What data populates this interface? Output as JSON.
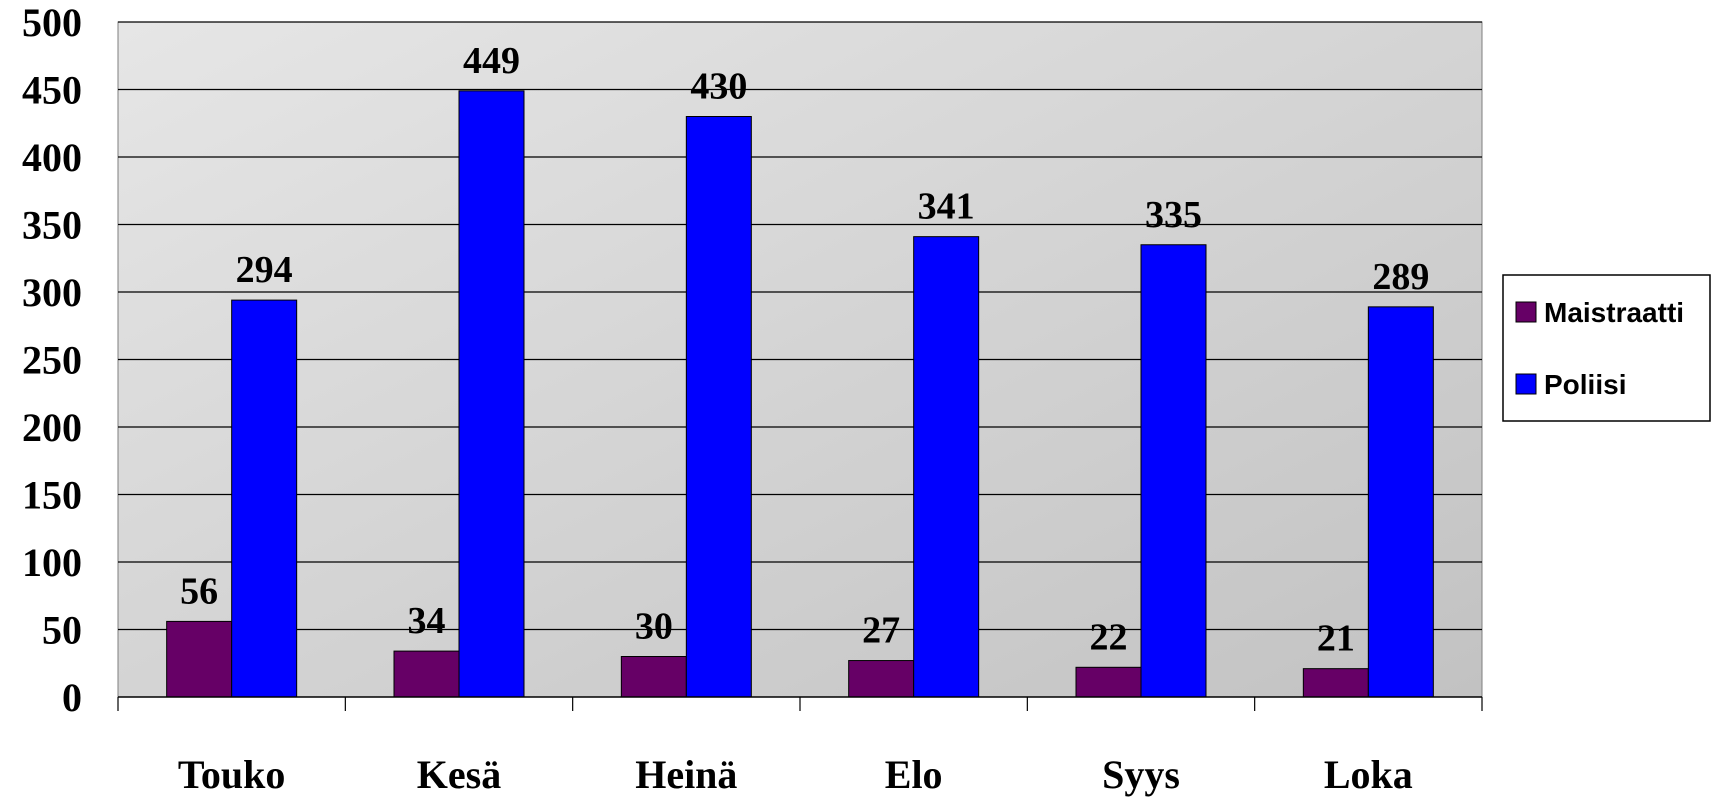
{
  "chart_data": {
    "type": "bar",
    "categories": [
      "Touko",
      "Kesä",
      "Heinä",
      "Elo",
      "Syys",
      "Loka"
    ],
    "series": [
      {
        "name": "Maistraatti",
        "values": [
          56,
          34,
          30,
          27,
          22,
          21
        ],
        "color": "#660066"
      },
      {
        "name": "Poliisi",
        "values": [
          294,
          449,
          430,
          341,
          335,
          289
        ],
        "color": "#0000ff"
      }
    ],
    "ylim": [
      0,
      500
    ],
    "yticks": [
      0,
      50,
      100,
      150,
      200,
      250,
      300,
      350,
      400,
      450,
      500
    ],
    "grid": true,
    "legend_position": "right",
    "title": "",
    "xlabel": "",
    "ylabel": ""
  }
}
